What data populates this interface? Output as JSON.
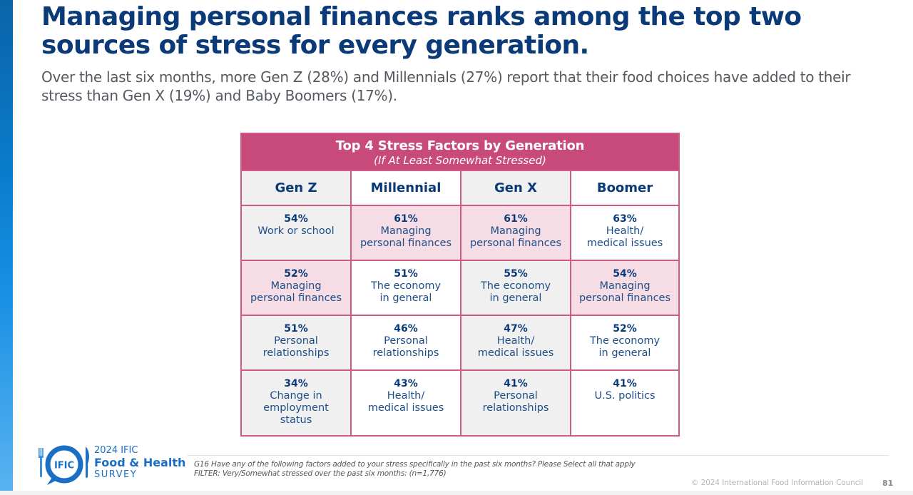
{
  "slide": {
    "title": "Managing personal finances ranks among the top two sources of stress for every generation.",
    "subtitle": "Over the last six months, more Gen Z (28%) and Millennials (27%) report that their food choices have added to their stress than Gen X (19%) and Baby Boomers (17%).",
    "accent_colors": {
      "title_navy": "#0b3a78",
      "table_header_pink": "#c84a7a",
      "table_border_pink": "#d05a86",
      "highlight_pink": "#f6dde5",
      "cell_gray": "#f0f0f0",
      "logo_blue": "#1a6fc4"
    }
  },
  "table": {
    "title": "Top 4 Stress Factors by Generation",
    "subtitle": "(If At Least Somewhat Stressed)",
    "columns": [
      "Gen Z",
      "Millennial",
      "Gen X",
      "Boomer"
    ],
    "rows": [
      [
        {
          "pct": "54%",
          "label": "Work or school",
          "highlight": false
        },
        {
          "pct": "61%",
          "label": "Managing\npersonal finances",
          "highlight": true
        },
        {
          "pct": "61%",
          "label": "Managing\npersonal finances",
          "highlight": true
        },
        {
          "pct": "63%",
          "label": "Health/\nmedical issues",
          "highlight": false
        }
      ],
      [
        {
          "pct": "52%",
          "label": "Managing\npersonal finances",
          "highlight": true
        },
        {
          "pct": "51%",
          "label": "The economy\nin general",
          "highlight": false
        },
        {
          "pct": "55%",
          "label": "The economy\nin general",
          "highlight": false
        },
        {
          "pct": "54%",
          "label": "Managing\npersonal finances",
          "highlight": true
        }
      ],
      [
        {
          "pct": "51%",
          "label": "Personal\nrelationships",
          "highlight": false
        },
        {
          "pct": "46%",
          "label": "Personal\nrelationships",
          "highlight": false
        },
        {
          "pct": "47%",
          "label": "Health/\nmedical issues",
          "highlight": false
        },
        {
          "pct": "52%",
          "label": "The economy\nin general",
          "highlight": false
        }
      ],
      [
        {
          "pct": "34%",
          "label": "Change in\nemployment\nstatus",
          "highlight": false
        },
        {
          "pct": "43%",
          "label": "Health/\nmedical issues",
          "highlight": false
        },
        {
          "pct": "41%",
          "label": "Personal\nrelationships",
          "highlight": false
        },
        {
          "pct": "41%",
          "label": "U.S. politics",
          "highlight": false
        }
      ]
    ]
  },
  "logo": {
    "badge_text": "IFIC",
    "year_line": "2024 IFIC",
    "name_line": "Food & Health",
    "survey_line": "SURVEY",
    "icons": [
      "fork-icon",
      "speech-bubble-icon",
      "knife-icon"
    ]
  },
  "footer": {
    "question": "G16 Have any of the following factors added to your stress specifically in the past six months? Please Select all that apply",
    "filter": "FILTER: Very/Somewhat stressed over the past six months: (n=1,776)",
    "copyright": "© 2024 International Food Information Council",
    "page_number": "81"
  }
}
